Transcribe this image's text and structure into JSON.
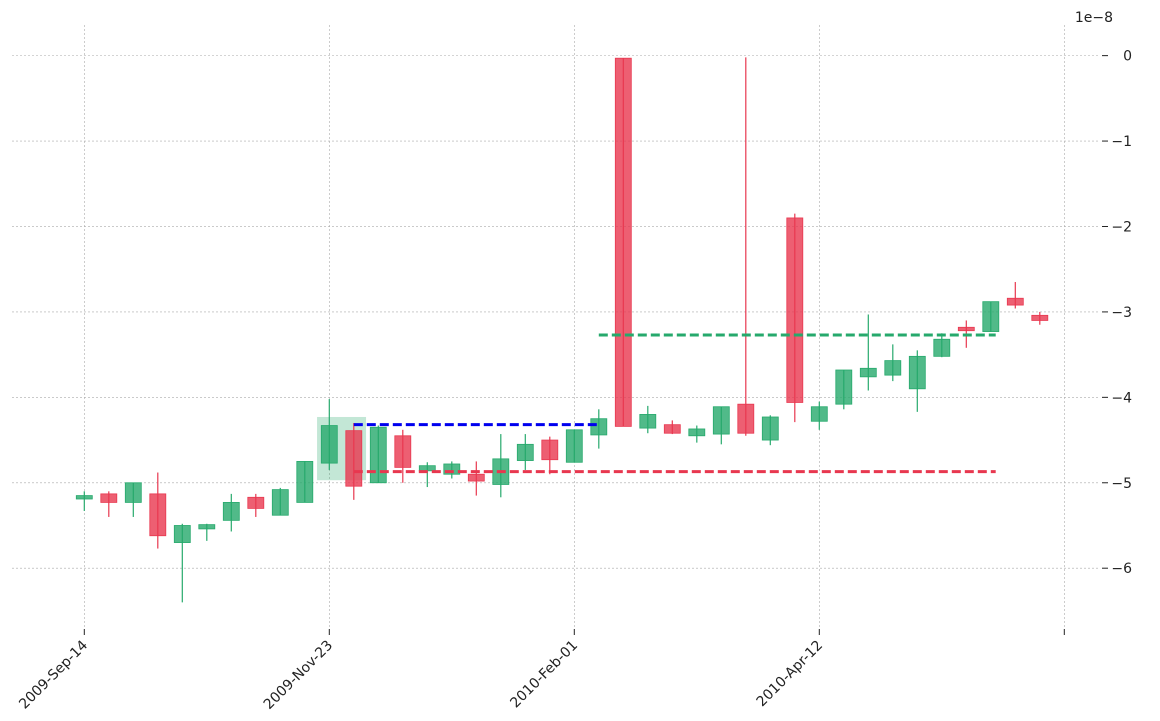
{
  "chart_data": {
    "type": "candlestick",
    "title": "",
    "xlabel": "",
    "ylabel": "",
    "y_offset_label": "1e−8",
    "ylim": [
      -6.7,
      0.3
    ],
    "y_ticks": [
      0,
      -1,
      -2,
      -3,
      -4,
      -5,
      -6
    ],
    "y_tick_labels": [
      "0",
      "−1",
      "−2",
      "−3",
      "−4",
      "−5",
      "−6"
    ],
    "x_ticks": [
      {
        "index": 0,
        "label": "2009-Sep-14"
      },
      {
        "index": 10,
        "label": "2009-Nov-23"
      },
      {
        "index": 20,
        "label": "2010-Feb-01"
      },
      {
        "index": 30,
        "label": "2010-Apr-12"
      },
      {
        "index": 40,
        "label": ""
      }
    ],
    "grid": true,
    "colors": {
      "up": "#26a96c",
      "down": "#e8374f",
      "grid": "#aaaaaa",
      "blue_line": "#0000ee"
    },
    "candles": [
      {
        "open": -5.19,
        "high": -5.1,
        "low": -5.33,
        "close": -5.15
      },
      {
        "open": -5.13,
        "high": -5.1,
        "low": -5.4,
        "close": -5.23
      },
      {
        "open": -5.23,
        "high": -5.0,
        "low": -5.4,
        "close": -5.0
      },
      {
        "open": -5.13,
        "high": -4.88,
        "low": -5.77,
        "close": -5.62
      },
      {
        "open": -5.7,
        "high": -5.48,
        "low": -6.4,
        "close": -5.5
      },
      {
        "open": -5.54,
        "high": -5.48,
        "low": -5.68,
        "close": -5.49
      },
      {
        "open": -5.44,
        "high": -5.13,
        "low": -5.57,
        "close": -5.23
      },
      {
        "open": -5.17,
        "high": -5.13,
        "low": -5.4,
        "close": -5.3
      },
      {
        "open": -5.38,
        "high": -5.06,
        "low": -5.38,
        "close": -5.08
      },
      {
        "open": -5.23,
        "high": -4.75,
        "low": -5.23,
        "close": -4.75
      },
      {
        "open": -4.77,
        "high": -4.02,
        "low": -4.85,
        "close": -4.33
      },
      {
        "open": -4.39,
        "high": -4.3,
        "low": -5.2,
        "close": -5.04
      },
      {
        "open": -5.0,
        "high": -4.33,
        "low": -5.0,
        "close": -4.35
      },
      {
        "open": -4.45,
        "high": -4.38,
        "low": -5.0,
        "close": -4.82
      },
      {
        "open": -4.86,
        "high": -4.76,
        "low": -5.05,
        "close": -4.8
      },
      {
        "open": -4.9,
        "high": -4.75,
        "low": -4.95,
        "close": -4.78
      },
      {
        "open": -4.9,
        "high": -4.75,
        "low": -5.15,
        "close": -4.98
      },
      {
        "open": -5.02,
        "high": -4.43,
        "low": -5.17,
        "close": -4.72
      },
      {
        "open": -4.74,
        "high": -4.43,
        "low": -4.85,
        "close": -4.55
      },
      {
        "open": -4.5,
        "high": -4.46,
        "low": -4.9,
        "close": -4.73
      },
      {
        "open": -4.76,
        "high": -4.38,
        "low": -4.76,
        "close": -4.38
      },
      {
        "open": -4.44,
        "high": -4.14,
        "low": -4.6,
        "close": -4.25
      },
      {
        "open": -0.03,
        "high": -0.03,
        "low": -4.34,
        "close": -4.34
      },
      {
        "open": -4.36,
        "high": -4.1,
        "low": -4.42,
        "close": -4.2
      },
      {
        "open": -4.32,
        "high": -4.27,
        "low": -4.43,
        "close": -4.42
      },
      {
        "open": -4.45,
        "high": -4.33,
        "low": -4.53,
        "close": -4.37
      },
      {
        "open": -4.43,
        "high": -4.11,
        "low": -4.55,
        "close": -4.11
      },
      {
        "open": -4.08,
        "high": -0.02,
        "low": -4.45,
        "close": -4.42
      },
      {
        "open": -4.5,
        "high": -4.21,
        "low": -4.56,
        "close": -4.23
      },
      {
        "open": -1.9,
        "high": -1.85,
        "low": -4.29,
        "close": -4.06
      },
      {
        "open": -4.28,
        "high": -4.05,
        "low": -4.38,
        "close": -4.11
      },
      {
        "open": -4.08,
        "high": -3.68,
        "low": -4.14,
        "close": -3.68
      },
      {
        "open": -3.76,
        "high": -3.03,
        "low": -3.92,
        "close": -3.66
      },
      {
        "open": -3.74,
        "high": -3.38,
        "low": -3.81,
        "close": -3.57
      },
      {
        "open": -3.9,
        "high": -3.45,
        "low": -4.17,
        "close": -3.52
      },
      {
        "open": -3.52,
        "high": -3.25,
        "low": -3.53,
        "close": -3.32
      },
      {
        "open": -3.18,
        "high": -3.1,
        "low": -3.42,
        "close": -3.22
      },
      {
        "open": -3.23,
        "high": -2.88,
        "low": -3.23,
        "close": -2.88
      },
      {
        "open": -2.84,
        "high": -2.65,
        "low": -2.96,
        "close": -2.92
      },
      {
        "open": -3.04,
        "high": -3.0,
        "low": -3.15,
        "close": -3.1
      }
    ],
    "highlight": {
      "start_index": 10,
      "end_index": 11,
      "y_top": -4.23,
      "y_bottom": -4.97
    },
    "lines": [
      {
        "color": "#0000ee",
        "y": -4.32,
        "x_start": 11,
        "x_end": 21
      },
      {
        "color": "#e8374f",
        "y": -4.87,
        "x_start": 11,
        "x_end": 37.2
      },
      {
        "color": "#26a96c",
        "y": -3.27,
        "x_start": 21,
        "x_end": 37.2
      }
    ]
  }
}
